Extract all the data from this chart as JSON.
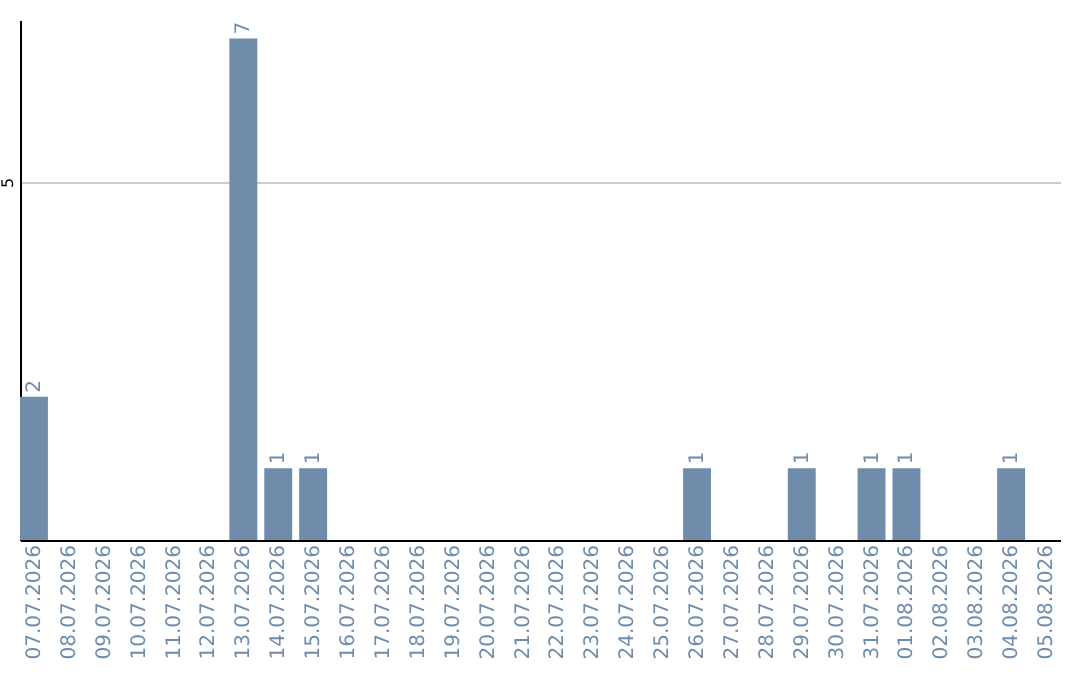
{
  "chart_data": {
    "type": "bar",
    "categories": [
      "07.07.2026",
      "08.07.2026",
      "09.07.2026",
      "10.07.2026",
      "11.07.2026",
      "12.07.2026",
      "13.07.2026",
      "14.07.2026",
      "15.07.2026",
      "16.07.2026",
      "17.07.2026",
      "18.07.2026",
      "19.07.2026",
      "20.07.2026",
      "21.07.2026",
      "22.07.2026",
      "23.07.2026",
      "24.07.2026",
      "25.07.2026",
      "26.07.2026",
      "27.07.2026",
      "28.07.2026",
      "29.07.2026",
      "30.07.2026",
      "31.07.2026",
      "01.08.2026",
      "02.08.2026",
      "03.08.2026",
      "04.08.2026",
      "05.08.2026"
    ],
    "values": [
      2,
      0,
      0,
      0,
      0,
      0,
      7,
      1,
      1,
      0,
      0,
      0,
      0,
      0,
      0,
      0,
      0,
      0,
      0,
      1,
      0,
      0,
      1,
      0,
      1,
      1,
      0,
      0,
      1,
      0
    ],
    "value_labels": [
      "2",
      null,
      null,
      null,
      null,
      null,
      "7",
      "1",
      "1",
      null,
      null,
      null,
      null,
      null,
      null,
      null,
      null,
      null,
      null,
      "1",
      null,
      null,
      "1",
      null,
      "1",
      "1",
      null,
      null,
      "1",
      null
    ],
    "color": "#6f8caa",
    "ylim": [
      0,
      7.26
    ],
    "yticks": [
      5
    ],
    "grid": "y"
  }
}
